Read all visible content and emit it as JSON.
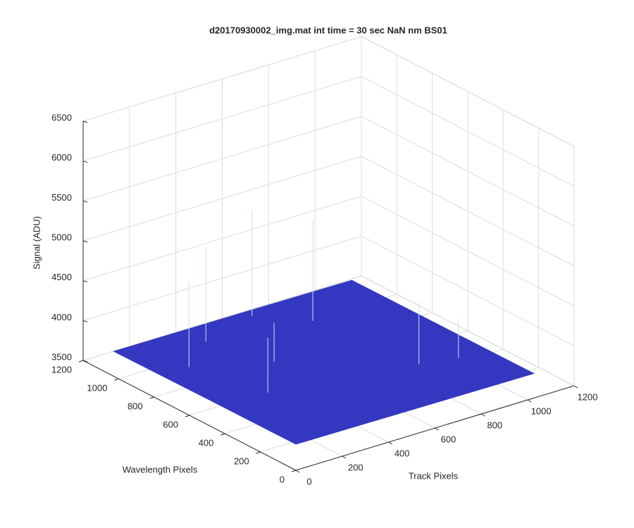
{
  "chart_data": {
    "type": "surface3d",
    "title": "d20170930002_img.mat int time = 30 sec  NaN nm BS01",
    "xlabel": "Track Pixels",
    "ylabel": "Wavelength Pixels",
    "zlabel": "Signal (ADU)",
    "x": [
      0,
      512,
      1024
    ],
    "y": [
      0,
      512,
      1024
    ],
    "z": [
      [
        3830,
        3820,
        3810
      ],
      [
        3825,
        3815,
        3805
      ],
      [
        3815,
        3810,
        3800
      ]
    ],
    "spikes": {
      "x": [
        120,
        200,
        300,
        380,
        560,
        700,
        760,
        900
      ],
      "y": [
        760,
        420,
        900,
        620,
        980,
        820,
        300,
        260
      ],
      "z": [
        4900,
        4500,
        5000,
        4300,
        5150,
        5100,
        4600,
        4300
      ]
    },
    "color": "#3438c0",
    "spike_color": "#bfe6f0",
    "xlim": [
      0,
      1200
    ],
    "ylim": [
      0,
      1200
    ],
    "zlim": [
      3500,
      6500
    ],
    "xticks": [
      0,
      200,
      400,
      600,
      800,
      1000,
      1200
    ],
    "yticks": [
      0,
      200,
      400,
      600,
      800,
      1000,
      1200
    ],
    "zticks": [
      3500,
      4000,
      4500,
      5000,
      5500,
      6000,
      6500
    ],
    "grid": true
  }
}
